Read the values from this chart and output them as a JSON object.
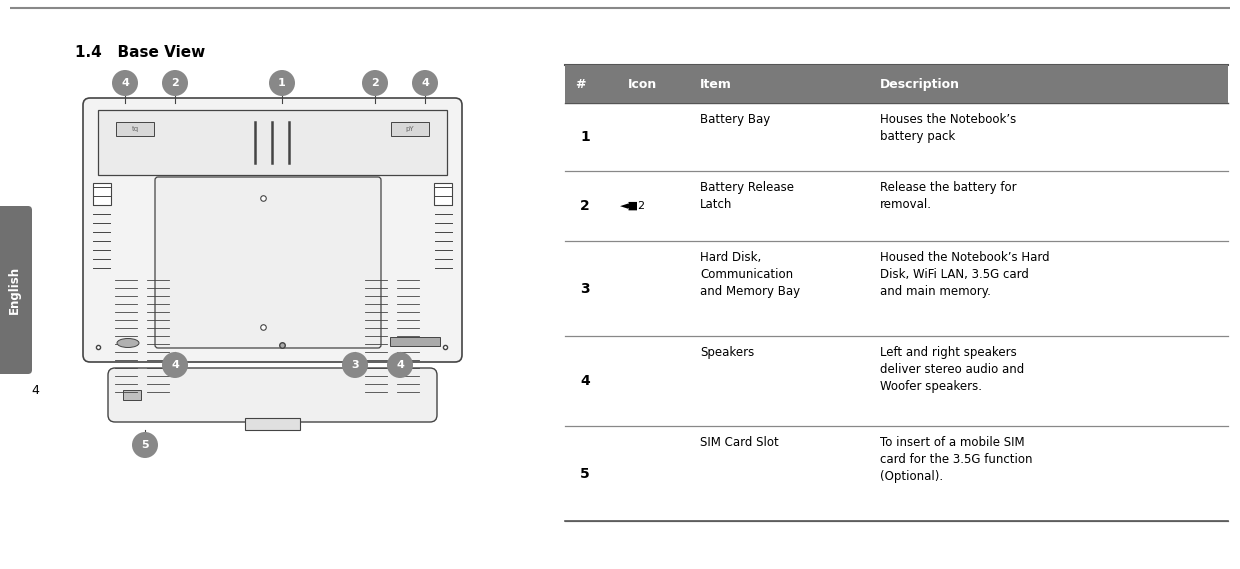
{
  "title": "1.4   Base View",
  "page_number": "4",
  "sidebar_text": "English",
  "header_color": "#7a7a7a",
  "header_text_color": "#ffffff",
  "columns": [
    "#",
    "Icon",
    "Item",
    "Description"
  ],
  "rows": [
    {
      "num": "1",
      "icon": "",
      "item": "Battery Bay",
      "description": "Houses the Notebook’s\nbattery pack"
    },
    {
      "num": "2",
      "icon": "◄■2",
      "item": "Battery Release\nLatch",
      "description": "Release the battery for\nremoval."
    },
    {
      "num": "3",
      "icon": "",
      "item": "Hard Disk,\nCommunication\nand Memory Bay",
      "description": "Housed the Notebook’s Hard\nDisk, WiFi LAN, 3.5G card\nand main memory."
    },
    {
      "num": "4",
      "icon": "",
      "item": "Speakers",
      "description": "Left and right speakers\ndeliver stereo audio and\nWoofer speakers."
    },
    {
      "num": "5",
      "icon": "",
      "item": "SIM Card Slot",
      "description": "To insert of a mobile SIM\ncard for the 3.5G function\n(Optional)."
    }
  ],
  "row_divider_color": "#888888",
  "bg_color": "#ffffff",
  "top_line_color": "#888888",
  "callout_circle_color": "#888888",
  "callout_text_color": "#ffffff",
  "notebook_line_color": "#444444"
}
